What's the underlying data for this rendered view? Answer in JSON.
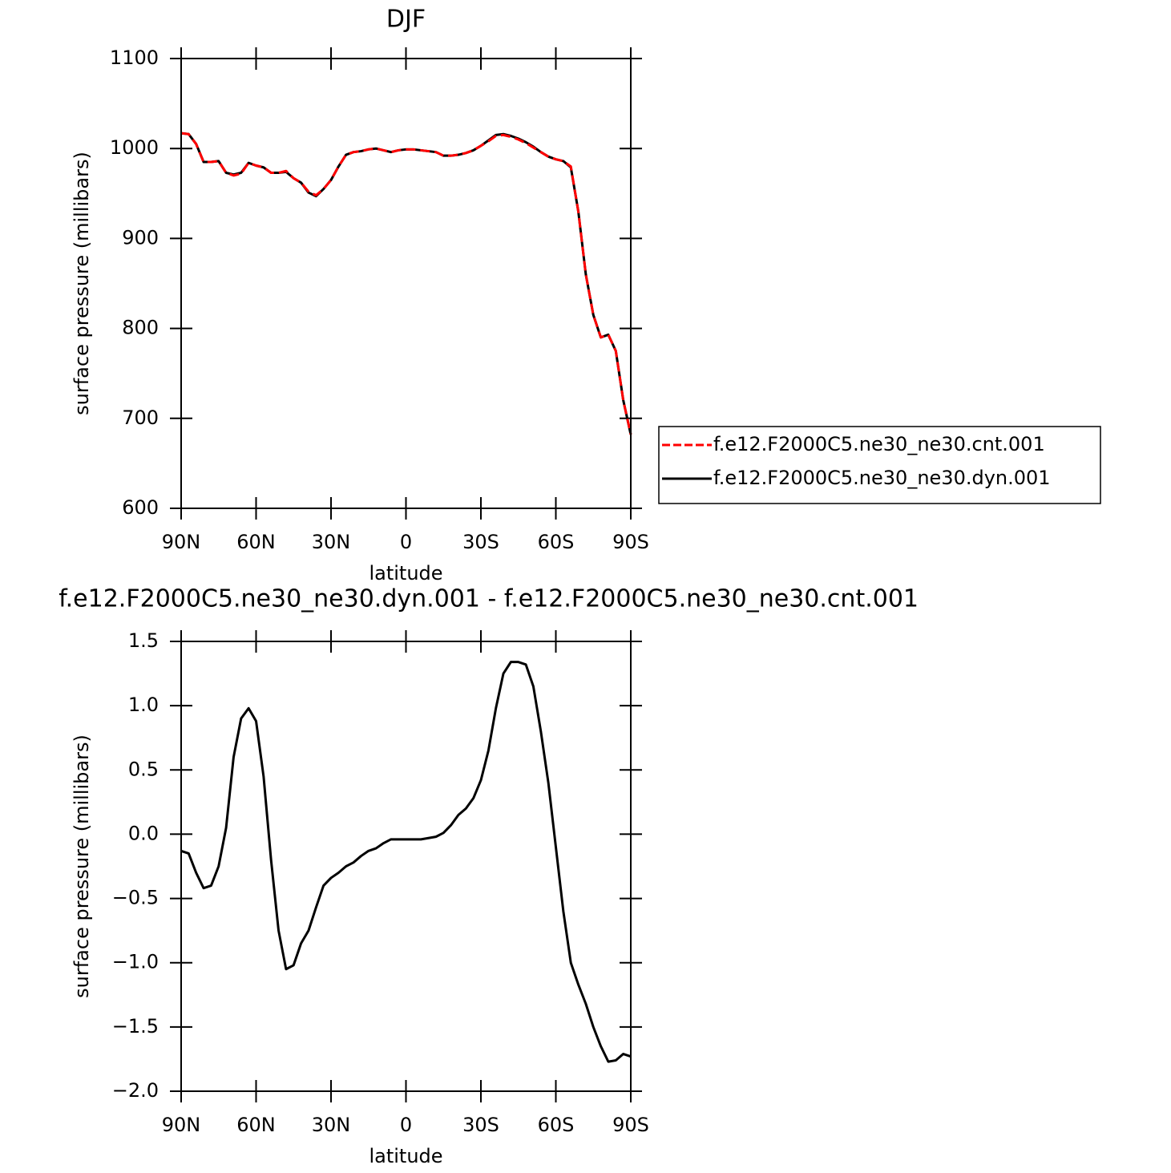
{
  "chart_data": [
    {
      "type": "line",
      "title": "DJF",
      "xlabel": "latitude",
      "ylabel": "surface pressure (millibars)",
      "x": [
        90,
        87,
        84,
        81,
        78,
        75,
        72,
        69,
        66,
        63,
        60,
        57,
        54,
        51,
        48,
        45,
        42,
        39,
        36,
        33,
        30,
        27,
        24,
        21,
        18,
        15,
        12,
        9,
        6,
        3,
        0,
        -3,
        -6,
        -9,
        -12,
        -15,
        -18,
        -21,
        -24,
        -27,
        -30,
        -33,
        -36,
        -39,
        -42,
        -45,
        -48,
        -51,
        -54,
        -57,
        -60,
        -63,
        -66,
        -69,
        -72,
        -75,
        -78,
        -81,
        -84,
        -87,
        -90
      ],
      "series": [
        {
          "name": "f.e12.F2000C5.ne30_ne30.cnt.001",
          "color": "#ff0000",
          "dash": true,
          "values": [
            1017,
            1016,
            1005,
            985,
            985,
            986,
            973,
            970,
            972,
            984,
            981,
            979,
            973,
            973,
            975,
            967,
            962,
            952,
            948,
            955,
            965,
            980,
            993,
            996,
            997,
            999,
            1000,
            998,
            996,
            998,
            999,
            999,
            998,
            997,
            996,
            992,
            992,
            993,
            995,
            998,
            1003,
            1008,
            1014,
            1015,
            1013,
            1010,
            1006,
            1001,
            996,
            991,
            988,
            986,
            980,
            930,
            860,
            815,
            790,
            793,
            775,
            720,
            682
          ]
        },
        {
          "name": "f.e12.F2000C5.ne30_ne30.dyn.001",
          "color": "#000000",
          "dash": false,
          "values": [
            1017,
            1016,
            1005,
            985,
            985,
            986,
            973,
            971,
            973,
            984,
            981,
            979,
            973,
            973,
            974,
            967,
            962,
            951,
            947,
            955,
            965,
            980,
            993,
            996,
            997,
            999,
            1000,
            998,
            996,
            998,
            999,
            999,
            998,
            997,
            996,
            992,
            992,
            993,
            995,
            998,
            1003,
            1009,
            1015,
            1016,
            1014,
            1011,
            1007,
            1002,
            996,
            991,
            988,
            986,
            979,
            930,
            860,
            815,
            790,
            793,
            775,
            720,
            682
          ]
        }
      ],
      "xlim": [
        90,
        -90
      ],
      "xticks": [
        {
          "value": 90,
          "label": "90N"
        },
        {
          "value": 60,
          "label": "60N"
        },
        {
          "value": 30,
          "label": "30N"
        },
        0,
        {
          "value": -30,
          "label": "30S"
        },
        {
          "value": -60,
          "label": "60S"
        },
        {
          "value": -90,
          "label": "90S"
        }
      ],
      "ylim": [
        600,
        1100
      ],
      "yticks": [
        600,
        700,
        800,
        900,
        1000,
        1100
      ],
      "legend": "right"
    },
    {
      "type": "line",
      "title": "f.e12.F2000C5.ne30_ne30.dyn.001 - f.e12.F2000C5.ne30_ne30.cnt.001",
      "xlabel": "latitude",
      "ylabel": "surface pressure (millibars)",
      "x": [
        90,
        87,
        84,
        81,
        78,
        75,
        72,
        69,
        66,
        63,
        60,
        57,
        54,
        51,
        48,
        45,
        42,
        39,
        36,
        33,
        30,
        27,
        24,
        21,
        18,
        15,
        12,
        9,
        6,
        3,
        0,
        -3,
        -6,
        -9,
        -12,
        -15,
        -18,
        -21,
        -24,
        -27,
        -30,
        -33,
        -36,
        -39,
        -42,
        -45,
        -48,
        -51,
        -54,
        -57,
        -60,
        -63,
        -66,
        -69,
        -72,
        -75,
        -78,
        -81,
        -84,
        -87,
        -90
      ],
      "series": [
        {
          "color": "#000000",
          "dash": false,
          "values": [
            -0.13,
            -0.15,
            -0.3,
            -0.42,
            -0.4,
            -0.25,
            0.05,
            0.6,
            0.9,
            0.98,
            0.88,
            0.45,
            -0.2,
            -0.75,
            -1.05,
            -1.02,
            -0.85,
            -0.75,
            -0.57,
            -0.4,
            -0.34,
            -0.3,
            -0.25,
            -0.22,
            -0.17,
            -0.13,
            -0.11,
            -0.07,
            -0.04,
            -0.04,
            -0.04,
            -0.04,
            -0.04,
            -0.03,
            -0.02,
            0.01,
            0.07,
            0.15,
            0.2,
            0.28,
            0.42,
            0.65,
            0.98,
            1.25,
            1.34,
            1.34,
            1.32,
            1.15,
            0.8,
            0.4,
            -0.1,
            -0.6,
            -1.0,
            -1.17,
            -1.32,
            -1.5,
            -1.65,
            -1.77,
            -1.76,
            -1.71,
            -1.73
          ]
        }
      ],
      "xlim": [
        90,
        -90
      ],
      "xticks": [
        {
          "value": 90,
          "label": "90N"
        },
        {
          "value": 60,
          "label": "60N"
        },
        {
          "value": 30,
          "label": "30N"
        },
        0,
        {
          "value": -30,
          "label": "30S"
        },
        {
          "value": -60,
          "label": "60S"
        },
        {
          "value": -90,
          "label": "90S"
        }
      ],
      "ylim": [
        -2.0,
        1.5
      ],
      "yticks": [
        {
          "value": -2.0,
          "label": "−2.0"
        },
        {
          "value": -1.5,
          "label": "−1.5"
        },
        {
          "value": -1.0,
          "label": "−1.0"
        },
        {
          "value": -0.5,
          "label": "−0.5"
        },
        {
          "value": 0.0,
          "label": "0.0"
        },
        0.5,
        {
          "value": 1.0,
          "label": "1.0"
        },
        1.5
      ]
    }
  ]
}
